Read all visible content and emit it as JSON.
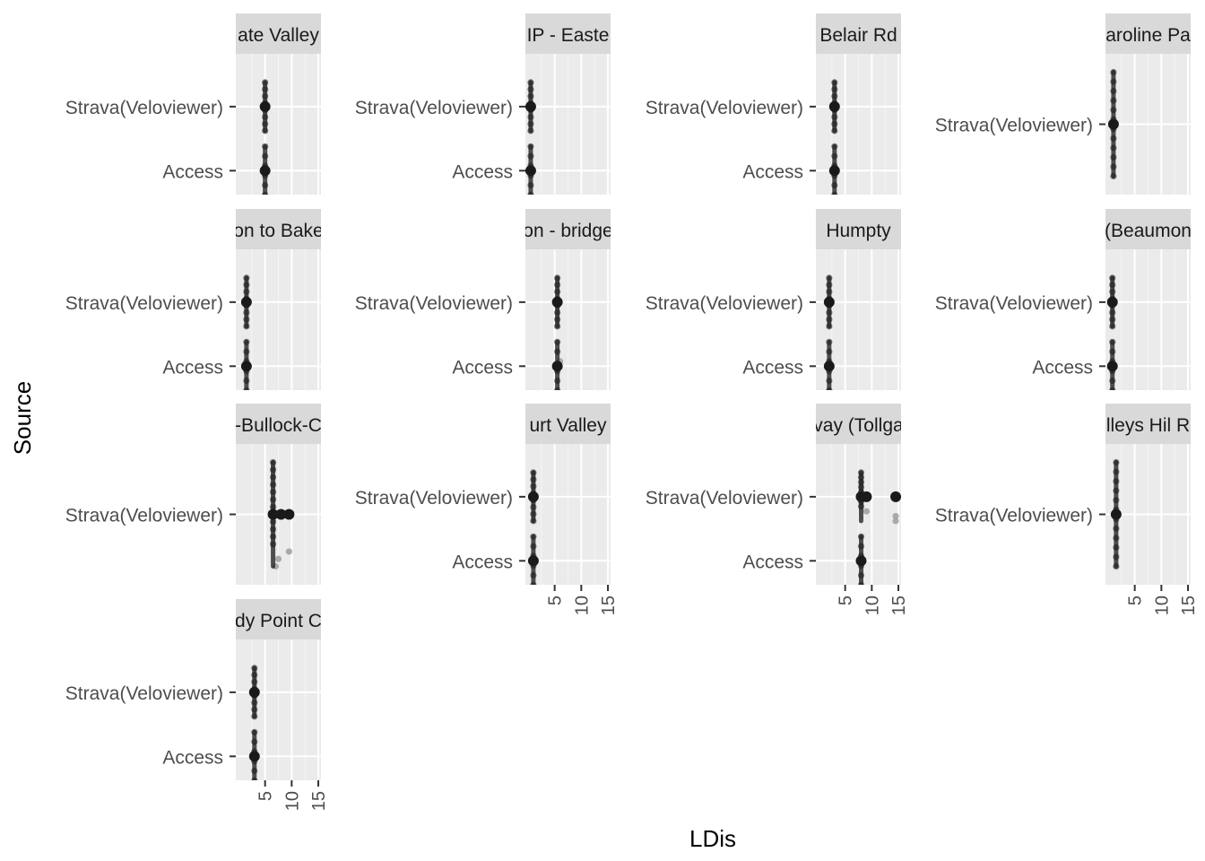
{
  "chart_data": {
    "type": "scatter",
    "xlabel": "LDis",
    "ylabel": "Source",
    "x_ticks": [
      5,
      10,
      15
    ],
    "xlim": [
      -0.5,
      15.5
    ],
    "categories": [
      "Strava(Veloviewer)",
      "Access"
    ],
    "facets": [
      {
        "strip": "ate Valley",
        "rows": [
          {
            "label": "Strava(Veloviewer)",
            "x": [
              5,
              5,
              5,
              5,
              5,
              5,
              5,
              5
            ],
            "mean": 5
          },
          {
            "label": "Access",
            "x": [
              5,
              5,
              5,
              5,
              5,
              5
            ],
            "mean": 5
          }
        ]
      },
      {
        "strip": "IP - Easte",
        "rows": [
          {
            "label": "Strava(Veloviewer)",
            "x": [
              0.5,
              0.5,
              0.5,
              0.5,
              0.5,
              0.5,
              0.5,
              0.5
            ],
            "mean": 0.5
          },
          {
            "label": "Access",
            "x": [
              0.5,
              0.5,
              0.5,
              0.5,
              0.5,
              0.5
            ],
            "mean": 0.5
          }
        ]
      },
      {
        "strip": "Belair Rd",
        "rows": [
          {
            "label": "Strava(Veloviewer)",
            "x": [
              3,
              3,
              3,
              3,
              3,
              3,
              3,
              3
            ],
            "mean": 3
          },
          {
            "label": "Access",
            "x": [
              3,
              3,
              3,
              3,
              3,
              3
            ],
            "mean": 3
          }
        ]
      },
      {
        "strip": "aroline Pa",
        "rows": [
          {
            "label": "Strava(Veloviewer)",
            "x": [
              1,
              1,
              1,
              1,
              1,
              1,
              1,
              1,
              1,
              1,
              1,
              1
            ],
            "mean": 1
          }
        ]
      },
      {
        "strip": "on to Bake",
        "rows": [
          {
            "label": "Strava(Veloviewer)",
            "x": [
              1.5,
              1.5,
              1.5,
              1.5,
              1.5,
              1.5,
              1.5,
              1.5
            ],
            "mean": 1.5
          },
          {
            "label": "Access",
            "x": [
              1.5,
              1.5,
              1.5,
              1.5,
              1.5,
              1.5
            ],
            "mean": 1.5
          }
        ]
      },
      {
        "strip": "on - bridge",
        "rows": [
          {
            "label": "Strava(Veloviewer)",
            "x": [
              5.5,
              5.5,
              5.5,
              5.5,
              5.5,
              5.5,
              5.5,
              5.5
            ],
            "mean": 5.5
          },
          {
            "label": "Access",
            "x": [
              5.5,
              5.5,
              6,
              5.5,
              5.5,
              5.5
            ],
            "mean": 5.5
          }
        ]
      },
      {
        "strip": "Humpty",
        "rows": [
          {
            "label": "Strava(Veloviewer)",
            "x": [
              2,
              2,
              2,
              2,
              2,
              2,
              2,
              2
            ],
            "mean": 2
          },
          {
            "label": "Access",
            "x": [
              2,
              2,
              2,
              2,
              2,
              2
            ],
            "mean": 2
          }
        ]
      },
      {
        "strip": "(Beaumon",
        "rows": [
          {
            "label": "Strava(Veloviewer)",
            "x": [
              0.8,
              0.8,
              0.8,
              0.8,
              0.8,
              0.8,
              0.8,
              0.8
            ],
            "mean": 0.8
          },
          {
            "label": "Access",
            "x": [
              0.8,
              0.8,
              0.8,
              0.8,
              0.8,
              0.8
            ],
            "mean": 0.8
          }
        ]
      },
      {
        "strip": "-Bullock-C",
        "rows": [
          {
            "label": "Strava(Veloviewer)",
            "x": [
              6.5,
              6.5,
              6.5,
              6.5,
              6.5,
              6.5,
              6.5,
              6.5,
              6.5,
              6.5,
              6.5,
              6.5,
              9.5,
              7.5,
              7
            ],
            "mean": 6.5,
            "extra_mean": [
              8,
              9.5
            ]
          }
        ]
      },
      {
        "strip": "urt Valley",
        "rows": [
          {
            "label": "Strava(Veloviewer)",
            "x": [
              1,
              1,
              1,
              1,
              1,
              1,
              1,
              1
            ],
            "mean": 1
          },
          {
            "label": "Access",
            "x": [
              1,
              1,
              1,
              1,
              1,
              1
            ],
            "mean": 1
          }
        ]
      },
      {
        "strip": "vay (Tollga",
        "rows": [
          {
            "label": "Strava(Veloviewer)",
            "x": [
              8,
              8,
              8,
              8,
              8,
              8,
              8,
              8,
              9,
              14.5,
              14.5
            ],
            "mean": 8,
            "extra_mean": [
              9,
              14.5
            ]
          },
          {
            "label": "Access",
            "x": [
              8,
              8,
              8,
              8,
              8,
              8
            ],
            "mean": 8
          }
        ]
      },
      {
        "strip": "lleys Hil R",
        "rows": [
          {
            "label": "Strava(Veloviewer)",
            "x": [
              1.5,
              1.5,
              1.5,
              1.5,
              1.5,
              1.5,
              1.5,
              1.5,
              1.5,
              1.5,
              1.5,
              1.5
            ],
            "mean": 1.5
          }
        ]
      },
      {
        "strip": "dy Point C",
        "rows": [
          {
            "label": "Strava(Veloviewer)",
            "x": [
              3,
              3,
              3,
              3,
              3,
              3,
              3,
              3
            ],
            "mean": 3
          },
          {
            "label": "Access",
            "x": [
              3,
              3,
              3,
              3,
              3,
              3
            ],
            "mean": 3
          }
        ]
      }
    ]
  }
}
